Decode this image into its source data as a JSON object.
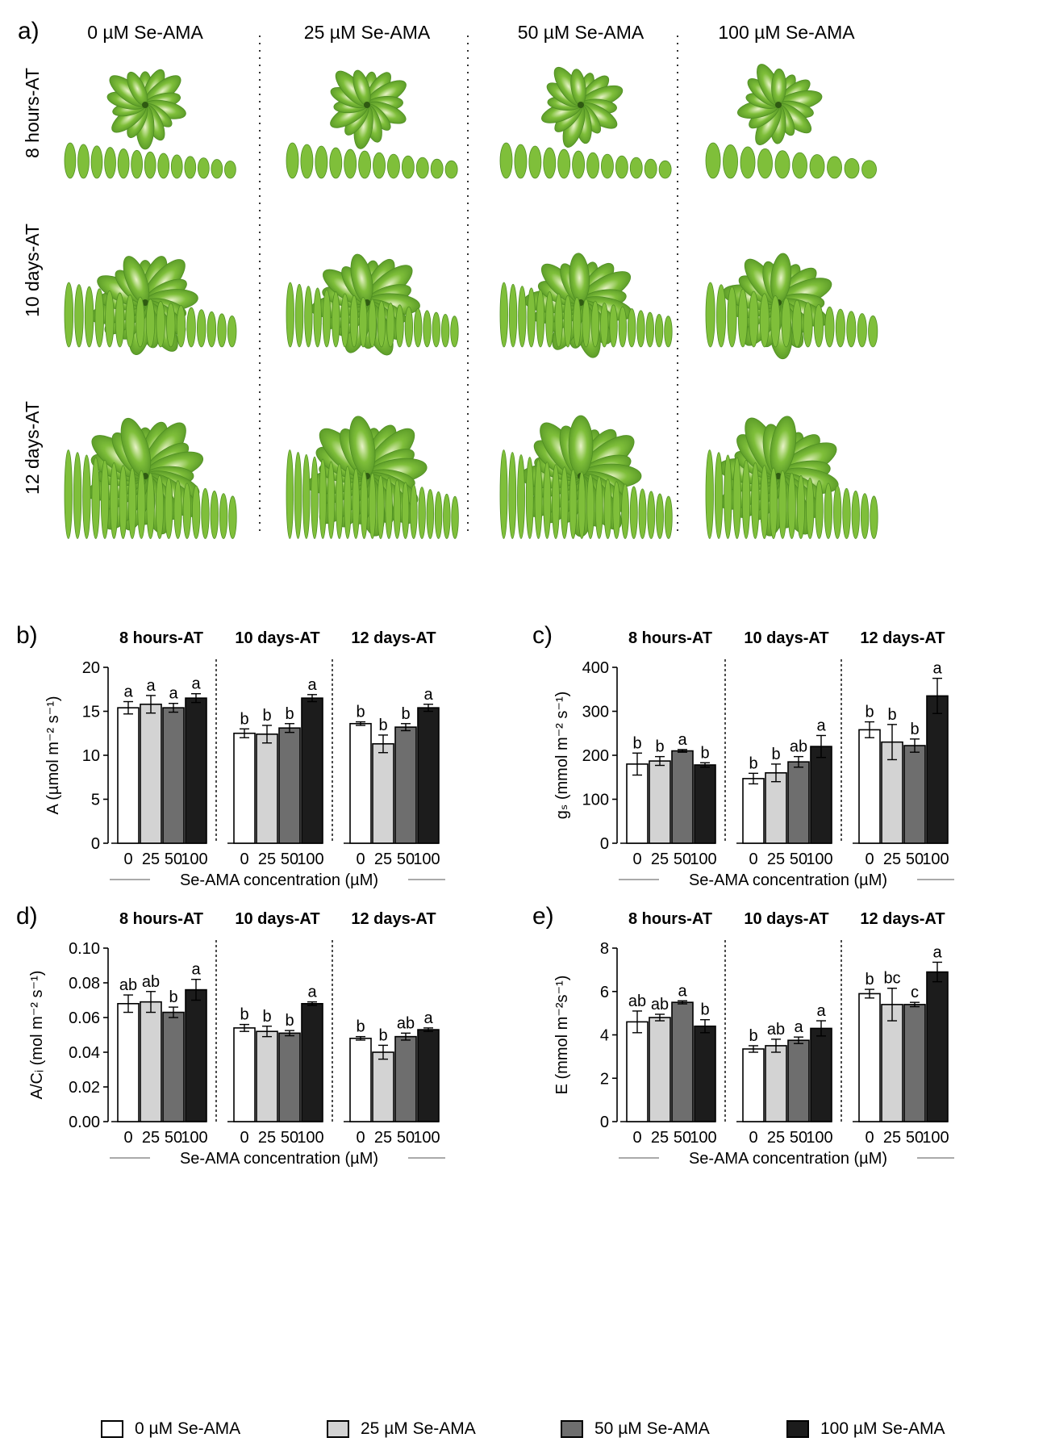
{
  "panel_a": {
    "label": "a)",
    "columns": [
      "0 µM Se-AMA",
      "25 µM Se-AMA",
      "50 µM Se-AMA",
      "100 µM Se-AMA"
    ],
    "rows": [
      "8 hours-AT",
      "10 days-AT",
      "12 days-AT"
    ],
    "leaf_counts": [
      [
        13,
        12,
        12,
        10
      ],
      [
        17,
        19,
        19,
        16
      ],
      [
        19,
        21,
        20,
        19
      ]
    ]
  },
  "colors": {
    "c0": "#ffffff",
    "c25": "#d3d3d3",
    "c50": "#6e6e6e",
    "c100": "#1c1c1c",
    "leaf": "#7fbf3a",
    "leaf_dark": "#4f8f22",
    "leaf_light": "#e8f3c8"
  },
  "legend": [
    {
      "label": "0 µM Se-AMA",
      "color": "#ffffff"
    },
    {
      "label": "25 µM Se-AMA",
      "color": "#d3d3d3"
    },
    {
      "label": "50 µM Se-AMA",
      "color": "#6e6e6e"
    },
    {
      "label": "100 µM Se-AMA",
      "color": "#1c1c1c"
    }
  ],
  "chart_data": [
    {
      "panel": "b)",
      "type": "bar",
      "groups": [
        "8 hours-AT",
        "10 days-AT",
        "12 days-AT"
      ],
      "categories": [
        "0",
        "25",
        "50",
        "100"
      ],
      "xlabel": "Se-AMA concentration (µM)",
      "ylabel": "A (µmol m⁻² s⁻¹)",
      "ylim": [
        0,
        20
      ],
      "yticks": [
        "0",
        "5",
        "10",
        "15",
        "20"
      ],
      "values": [
        [
          15.4,
          15.8,
          15.4,
          16.5
        ],
        [
          12.5,
          12.4,
          13.1,
          16.5
        ],
        [
          13.6,
          11.3,
          13.2,
          15.4
        ]
      ],
      "errors": [
        [
          0.7,
          1.0,
          0.5,
          0.5
        ],
        [
          0.5,
          1.0,
          0.5,
          0.4
        ],
        [
          0.2,
          1.0,
          0.4,
          0.4
        ]
      ],
      "letters": [
        [
          "a",
          "a",
          "a",
          "a"
        ],
        [
          "b",
          "b",
          "b",
          "a"
        ],
        [
          "b",
          "b",
          "b",
          "a"
        ]
      ]
    },
    {
      "panel": "c)",
      "type": "bar",
      "groups": [
        "8 hours-AT",
        "10 days-AT",
        "12 days-AT"
      ],
      "categories": [
        "0",
        "25",
        "50",
        "100"
      ],
      "xlabel": "Se-AMA concentration (µM)",
      "ylabel": "gₛ (mmol m⁻² s⁻¹)",
      "ylim": [
        0,
        400
      ],
      "yticks": [
        "0",
        "100",
        "200",
        "300",
        "400"
      ],
      "values": [
        [
          180,
          187,
          210,
          178
        ],
        [
          147,
          160,
          185,
          220
        ],
        [
          258,
          230,
          222,
          335
        ]
      ],
      "errors": [
        [
          25,
          10,
          3,
          5
        ],
        [
          12,
          20,
          12,
          25
        ],
        [
          18,
          40,
          15,
          40
        ]
      ],
      "letters": [
        [
          "b",
          "b",
          "a",
          "b"
        ],
        [
          "b",
          "b",
          "ab",
          "a"
        ],
        [
          "b",
          "b",
          "b",
          "a"
        ]
      ]
    },
    {
      "panel": "d)",
      "type": "bar",
      "groups": [
        "8 hours-AT",
        "10 days-AT",
        "12 days-AT"
      ],
      "categories": [
        "0",
        "25",
        "50",
        "100"
      ],
      "xlabel": "Se-AMA concentration (µM)",
      "ylabel": "A/Cᵢ (mol m⁻² s⁻¹)",
      "ylim": [
        0,
        0.1
      ],
      "yticks": [
        "0.00",
        "0.02",
        "0.04",
        "0.06",
        "0.08",
        "0.10"
      ],
      "values": [
        [
          0.068,
          0.069,
          0.063,
          0.076
        ],
        [
          0.054,
          0.052,
          0.051,
          0.068
        ],
        [
          0.048,
          0.04,
          0.049,
          0.053
        ]
      ],
      "errors": [
        [
          0.005,
          0.006,
          0.003,
          0.006
        ],
        [
          0.002,
          0.003,
          0.0015,
          0.001
        ],
        [
          0.001,
          0.004,
          0.002,
          0.001
        ]
      ],
      "letters": [
        [
          "ab",
          "ab",
          "b",
          "a"
        ],
        [
          "b",
          "b",
          "b",
          "a"
        ],
        [
          "b",
          "b",
          "ab",
          "a"
        ]
      ]
    },
    {
      "panel": "e)",
      "type": "bar",
      "groups": [
        "8 hours-AT",
        "10 days-AT",
        "12 days-AT"
      ],
      "categories": [
        "0",
        "25",
        "50",
        "100"
      ],
      "xlabel": "Se-AMA concentration (µM)",
      "ylabel": "E (mmol m⁻²s⁻¹)",
      "ylim": [
        0,
        8
      ],
      "yticks": [
        "0",
        "2",
        "4",
        "6",
        "8"
      ],
      "values": [
        [
          4.6,
          4.8,
          5.5,
          4.4
        ],
        [
          3.35,
          3.5,
          3.75,
          4.3
        ],
        [
          5.9,
          5.4,
          5.4,
          6.9
        ]
      ],
      "errors": [
        [
          0.5,
          0.15,
          0.07,
          0.3
        ],
        [
          0.15,
          0.3,
          0.15,
          0.35
        ],
        [
          0.2,
          0.75,
          0.1,
          0.45
        ]
      ],
      "letters": [
        [
          "ab",
          "ab",
          "a",
          "b"
        ],
        [
          "b",
          "ab",
          "a",
          "a"
        ],
        [
          "b",
          "bc",
          "c",
          "a"
        ]
      ]
    }
  ]
}
